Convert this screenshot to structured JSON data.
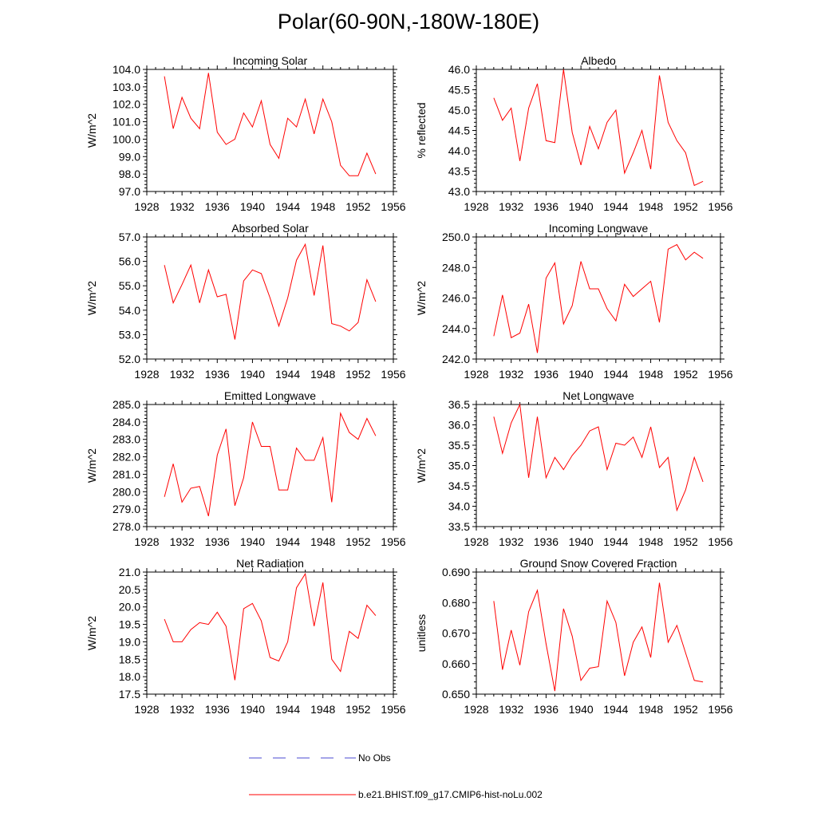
{
  "title": "Polar(60-90N,-180W-180E)",
  "colors": {
    "model": "#ff0000",
    "obs": "#4a4ad0",
    "axis": "#000000"
  },
  "legend": {
    "obs_label": "No Obs",
    "model_label": "b.e21.BHIST.f09_g17.CMIP6-hist-noLu.002"
  },
  "chart_data": [
    {
      "type": "line",
      "title": "Incoming Solar",
      "ylabel": "W/m^2",
      "xlim": [
        1928,
        1956
      ],
      "ylim": [
        97,
        104
      ],
      "yticks": [
        97,
        98,
        99,
        100,
        101,
        102,
        103,
        104
      ],
      "ytick_labels": [
        "97.0",
        "98.0",
        "99.0",
        "100.0",
        "101.0",
        "102.0",
        "103.0",
        "104.0"
      ],
      "xticks": [
        1928,
        1932,
        1936,
        1940,
        1944,
        1948,
        1952,
        1956
      ],
      "xtick_labels": [
        "1928",
        "1932",
        "1936",
        "1940",
        "1944",
        "1948",
        "1952",
        "1956"
      ],
      "series": [
        {
          "x": [
            1930,
            1931,
            1932,
            1933,
            1934,
            1935,
            1936,
            1937,
            1938,
            1939,
            1940,
            1941,
            1942,
            1943,
            1944,
            1945,
            1946,
            1947,
            1948,
            1949,
            1950,
            1951,
            1952,
            1953,
            1954
          ],
          "values": [
            103.6,
            100.6,
            102.4,
            101.2,
            100.6,
            103.8,
            100.4,
            99.7,
            100.0,
            101.5,
            100.7,
            102.2,
            99.7,
            98.9,
            101.2,
            100.7,
            102.3,
            100.3,
            102.3,
            101.0,
            98.5,
            97.9,
            97.9,
            99.2,
            98.0
          ]
        }
      ]
    },
    {
      "type": "line",
      "title": "Albedo",
      "ylabel": "% reflected",
      "xlim": [
        1928,
        1956
      ],
      "ylim": [
        43,
        46
      ],
      "yticks": [
        43,
        43.5,
        44,
        44.5,
        45,
        45.5,
        46
      ],
      "ytick_labels": [
        "43.0",
        "43.5",
        "44.0",
        "44.5",
        "45.0",
        "45.5",
        "46.0"
      ],
      "xticks": [
        1928,
        1932,
        1936,
        1940,
        1944,
        1948,
        1952,
        1956
      ],
      "xtick_labels": [
        "1928",
        "1932",
        "1936",
        "1940",
        "1944",
        "1948",
        "1952",
        "1956"
      ],
      "series": [
        {
          "x": [
            1930,
            1931,
            1932,
            1933,
            1934,
            1935,
            1936,
            1937,
            1938,
            1939,
            1940,
            1941,
            1942,
            1943,
            1944,
            1945,
            1946,
            1947,
            1948,
            1949,
            1950,
            1951,
            1952,
            1953,
            1954
          ],
          "values": [
            45.3,
            44.75,
            45.05,
            43.75,
            45.05,
            45.65,
            44.25,
            44.2,
            46.0,
            44.45,
            43.65,
            44.6,
            44.05,
            44.7,
            45.0,
            43.45,
            43.95,
            44.5,
            43.55,
            45.85,
            44.7,
            44.25,
            43.95,
            43.15,
            43.25
          ]
        }
      ]
    },
    {
      "type": "line",
      "title": "Absorbed Solar",
      "ylabel": "W/m^2",
      "xlim": [
        1928,
        1956
      ],
      "ylim": [
        52,
        57
      ],
      "yticks": [
        52,
        53,
        54,
        55,
        56,
        57
      ],
      "ytick_labels": [
        "52.0",
        "53.0",
        "54.0",
        "55.0",
        "56.0",
        "57.0"
      ],
      "xticks": [
        1928,
        1932,
        1936,
        1940,
        1944,
        1948,
        1952,
        1956
      ],
      "xtick_labels": [
        "1928",
        "1932",
        "1936",
        "1940",
        "1944",
        "1948",
        "1952",
        "1956"
      ],
      "series": [
        {
          "x": [
            1930,
            1931,
            1932,
            1933,
            1934,
            1935,
            1936,
            1937,
            1938,
            1939,
            1940,
            1941,
            1942,
            1943,
            1944,
            1945,
            1946,
            1947,
            1948,
            1949,
            1950,
            1951,
            1952,
            1953,
            1954
          ],
          "values": [
            55.85,
            54.3,
            55.05,
            55.85,
            54.3,
            55.65,
            54.55,
            54.65,
            52.8,
            55.2,
            55.65,
            55.5,
            54.5,
            53.35,
            54.5,
            56.05,
            56.7,
            54.6,
            56.65,
            53.45,
            53.35,
            53.15,
            53.5,
            55.25,
            54.35
          ]
        }
      ]
    },
    {
      "type": "line",
      "title": "Incoming Longwave",
      "ylabel": "W/m^2",
      "xlim": [
        1928,
        1956
      ],
      "ylim": [
        242,
        250
      ],
      "yticks": [
        242,
        244,
        246,
        248,
        250
      ],
      "ytick_labels": [
        "242.0",
        "244.0",
        "246.0",
        "248.0",
        "250.0"
      ],
      "xticks": [
        1928,
        1932,
        1936,
        1940,
        1944,
        1948,
        1952,
        1956
      ],
      "xtick_labels": [
        "1928",
        "1932",
        "1936",
        "1940",
        "1944",
        "1948",
        "1952",
        "1956"
      ],
      "series": [
        {
          "x": [
            1930,
            1931,
            1932,
            1933,
            1934,
            1935,
            1936,
            1937,
            1938,
            1939,
            1940,
            1941,
            1942,
            1943,
            1944,
            1945,
            1946,
            1947,
            1948,
            1949,
            1950,
            1951,
            1952,
            1953,
            1954
          ],
          "values": [
            243.5,
            246.2,
            243.4,
            243.7,
            245.6,
            242.4,
            247.3,
            248.3,
            244.3,
            245.5,
            248.4,
            246.6,
            246.6,
            245.3,
            244.5,
            246.9,
            246.1,
            246.6,
            247.1,
            244.4,
            249.2,
            249.5,
            248.5,
            249.0,
            248.6
          ]
        }
      ]
    },
    {
      "type": "line",
      "title": "Emitted Longwave",
      "ylabel": "W/m^2",
      "xlim": [
        1928,
        1956
      ],
      "ylim": [
        278,
        285
      ],
      "yticks": [
        278,
        279,
        280,
        281,
        282,
        283,
        284,
        285
      ],
      "ytick_labels": [
        "278.0",
        "279.0",
        "280.0",
        "281.0",
        "282.0",
        "283.0",
        "284.0",
        "285.0"
      ],
      "xticks": [
        1928,
        1932,
        1936,
        1940,
        1944,
        1948,
        1952,
        1956
      ],
      "xtick_labels": [
        "1928",
        "1932",
        "1936",
        "1940",
        "1944",
        "1948",
        "1952",
        "1956"
      ],
      "series": [
        {
          "x": [
            1930,
            1931,
            1932,
            1933,
            1934,
            1935,
            1936,
            1937,
            1938,
            1939,
            1940,
            1941,
            1942,
            1943,
            1944,
            1945,
            1946,
            1947,
            1948,
            1949,
            1950,
            1951,
            1952,
            1953,
            1954
          ],
          "values": [
            279.7,
            281.6,
            279.4,
            280.2,
            280.3,
            278.6,
            282.1,
            283.6,
            279.2,
            280.8,
            284.0,
            282.6,
            282.6,
            280.1,
            280.1,
            282.5,
            281.8,
            281.8,
            283.1,
            279.4,
            284.5,
            283.4,
            283.0,
            284.2,
            283.2
          ]
        }
      ]
    },
    {
      "type": "line",
      "title": "Net Longwave",
      "ylabel": "W/m^2",
      "xlim": [
        1928,
        1956
      ],
      "ylim": [
        33.5,
        36.5
      ],
      "yticks": [
        33.5,
        34,
        34.5,
        35,
        35.5,
        36,
        36.5
      ],
      "ytick_labels": [
        "33.5",
        "34.0",
        "34.5",
        "35.0",
        "35.5",
        "36.0",
        "36.5"
      ],
      "xticks": [
        1928,
        1932,
        1936,
        1940,
        1944,
        1948,
        1952,
        1956
      ],
      "xtick_labels": [
        "1928",
        "1932",
        "1936",
        "1940",
        "1944",
        "1948",
        "1952",
        "1956"
      ],
      "series": [
        {
          "x": [
            1930,
            1931,
            1932,
            1933,
            1934,
            1935,
            1936,
            1937,
            1938,
            1939,
            1940,
            1941,
            1942,
            1943,
            1944,
            1945,
            1946,
            1947,
            1948,
            1949,
            1950,
            1951,
            1952,
            1953,
            1954
          ],
          "values": [
            36.2,
            35.3,
            36.05,
            36.5,
            34.7,
            36.2,
            34.7,
            35.2,
            34.9,
            35.25,
            35.5,
            35.85,
            35.95,
            34.9,
            35.55,
            35.5,
            35.7,
            35.2,
            35.95,
            34.95,
            35.2,
            33.9,
            34.4,
            35.2,
            34.6
          ]
        }
      ]
    },
    {
      "type": "line",
      "title": "Net Radiation",
      "ylabel": "W/m^2",
      "xlim": [
        1928,
        1956
      ],
      "ylim": [
        17.5,
        21
      ],
      "yticks": [
        17.5,
        18,
        18.5,
        19,
        19.5,
        20,
        20.5,
        21
      ],
      "ytick_labels": [
        "17.5",
        "18.0",
        "18.5",
        "19.0",
        "19.5",
        "20.0",
        "20.5",
        "21.0"
      ],
      "xticks": [
        1928,
        1932,
        1936,
        1940,
        1944,
        1948,
        1952,
        1956
      ],
      "xtick_labels": [
        "1928",
        "1932",
        "1936",
        "1940",
        "1944",
        "1948",
        "1952",
        "1956"
      ],
      "series": [
        {
          "x": [
            1930,
            1931,
            1932,
            1933,
            1934,
            1935,
            1936,
            1937,
            1938,
            1939,
            1940,
            1941,
            1942,
            1943,
            1944,
            1945,
            1946,
            1947,
            1948,
            1949,
            1950,
            1951,
            1952,
            1953,
            1954
          ],
          "values": [
            19.65,
            19.0,
            19.0,
            19.35,
            19.55,
            19.5,
            19.85,
            19.45,
            17.9,
            19.95,
            20.1,
            19.6,
            18.55,
            18.45,
            19.0,
            20.55,
            20.95,
            19.45,
            20.7,
            18.5,
            18.15,
            19.3,
            19.1,
            20.05,
            19.75
          ]
        }
      ]
    },
    {
      "type": "line",
      "title": "Ground Snow Covered Fraction",
      "ylabel": "unitless",
      "xlim": [
        1928,
        1956
      ],
      "ylim": [
        0.65,
        0.69
      ],
      "yticks": [
        0.65,
        0.66,
        0.67,
        0.68,
        0.69
      ],
      "ytick_labels": [
        "0.650",
        "0.660",
        "0.670",
        "0.680",
        "0.690"
      ],
      "xticks": [
        1928,
        1932,
        1936,
        1940,
        1944,
        1948,
        1952,
        1956
      ],
      "xtick_labels": [
        "1928",
        "1932",
        "1936",
        "1940",
        "1944",
        "1948",
        "1952",
        "1956"
      ],
      "series": [
        {
          "x": [
            1930,
            1931,
            1932,
            1933,
            1934,
            1935,
            1936,
            1937,
            1938,
            1939,
            1940,
            1941,
            1942,
            1943,
            1944,
            1945,
            1946,
            1947,
            1948,
            1949,
            1950,
            1951,
            1952,
            1953,
            1954
          ],
          "values": [
            0.6805,
            0.658,
            0.671,
            0.6595,
            0.677,
            0.684,
            0.6665,
            0.651,
            0.678,
            0.669,
            0.6545,
            0.6585,
            0.659,
            0.6805,
            0.6735,
            0.656,
            0.667,
            0.672,
            0.662,
            0.6865,
            0.667,
            0.6725,
            0.6635,
            0.6545,
            0.654
          ]
        }
      ]
    }
  ]
}
